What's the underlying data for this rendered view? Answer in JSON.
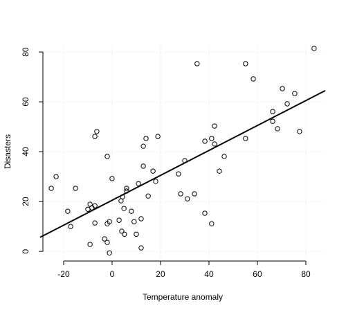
{
  "chart_data": {
    "type": "scatter",
    "xlabel": "Temperature anomaly",
    "ylabel": "Disasters",
    "x": [
      -25.1,
      -23.1,
      -18.3,
      -17.1,
      -15.1,
      -10,
      -9.1,
      -8.3,
      -7.1,
      -9.1,
      -7.1,
      -7.1,
      -6.3,
      -2,
      0,
      -3.1,
      -2,
      -1.1,
      -2,
      -1.1,
      2.9,
      3.7,
      4.3,
      4,
      5.1,
      4.9,
      6,
      6,
      8,
      9.1,
      10,
      10.9,
      12,
      12,
      12.9,
      12.9,
      14,
      14.9,
      16.9,
      18,
      18.9,
      27.4,
      28.3,
      30,
      31.1,
      34,
      35.1,
      38.3,
      38.3,
      41.1,
      41.1,
      42.3,
      42.3,
      44.3,
      46.3,
      55.1,
      55.1,
      58.3,
      66.3,
      66.3,
      68.3,
      70.3,
      72.3,
      75.4,
      77.4,
      83.4
    ],
    "y": [
      25.3,
      30,
      16.1,
      10,
      25.3,
      16.9,
      18.9,
      17.5,
      18.3,
      2.8,
      11.4,
      46.1,
      48.1,
      38.1,
      29.2,
      5,
      3.6,
      -0.6,
      11.1,
      11.9,
      12.5,
      20.3,
      21.9,
      8.1,
      6.9,
      17.2,
      25.3,
      24.2,
      16.1,
      11.9,
      6.9,
      27.2,
      13.1,
      1.4,
      34.2,
      42.2,
      45.3,
      22.2,
      32.2,
      28.1,
      46.1,
      31.1,
      23.1,
      36.4,
      21.1,
      23.1,
      75.3,
      15.3,
      44.2,
      45.3,
      11.1,
      50.3,
      43.1,
      32.2,
      38.1,
      75.3,
      45.3,
      69.2,
      56.1,
      52.2,
      49.2,
      65.3,
      59.2,
      63.3,
      48.1,
      81.4
    ],
    "fit_line": {
      "intercept": 20.5,
      "slope": 0.5
    },
    "xlim": [
      -29.7,
      88
    ],
    "ylim": [
      -3.3,
      82.8
    ],
    "xticks": [
      -20,
      0,
      20,
      40,
      60,
      80
    ],
    "yticks": [
      0,
      20,
      40,
      60,
      80
    ],
    "grid": true,
    "color": "#000000"
  }
}
